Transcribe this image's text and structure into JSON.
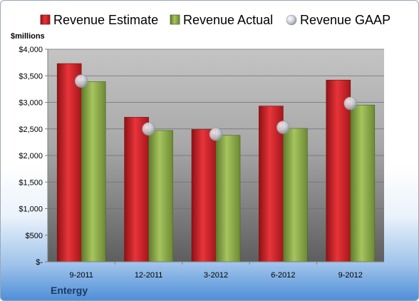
{
  "chart_data": {
    "type": "bar",
    "categories": [
      "9-2011",
      "12-2011",
      "3-2012",
      "6-2012",
      "9-2012"
    ],
    "series": [
      {
        "name": "Revenue Estimate",
        "type": "bar",
        "color": "#d7252c",
        "values": [
          3730,
          2720,
          2490,
          2930,
          3420
        ]
      },
      {
        "name": "Revenue Actual",
        "type": "bar",
        "color": "#8fb04b",
        "values": [
          3390,
          2470,
          2380,
          2510,
          2950
        ]
      },
      {
        "name": "Revenue GAAP",
        "type": "marker",
        "color": "#c8ccd4",
        "values": [
          3400,
          2500,
          2400,
          2530,
          2980
        ]
      }
    ],
    "ylabel": "$millions",
    "ylim": [
      0,
      4000
    ],
    "yticks": [
      0,
      500,
      1000,
      1500,
      2000,
      2500,
      3000,
      3500,
      4000
    ],
    "ytick_labels": [
      "$-",
      "$500",
      "$1,000",
      "$1,500",
      "$2,000",
      "$2,500",
      "$3,000",
      "$3,500",
      "$4,000"
    ],
    "grid": true,
    "legend": "top"
  },
  "company_label": "Entergy"
}
